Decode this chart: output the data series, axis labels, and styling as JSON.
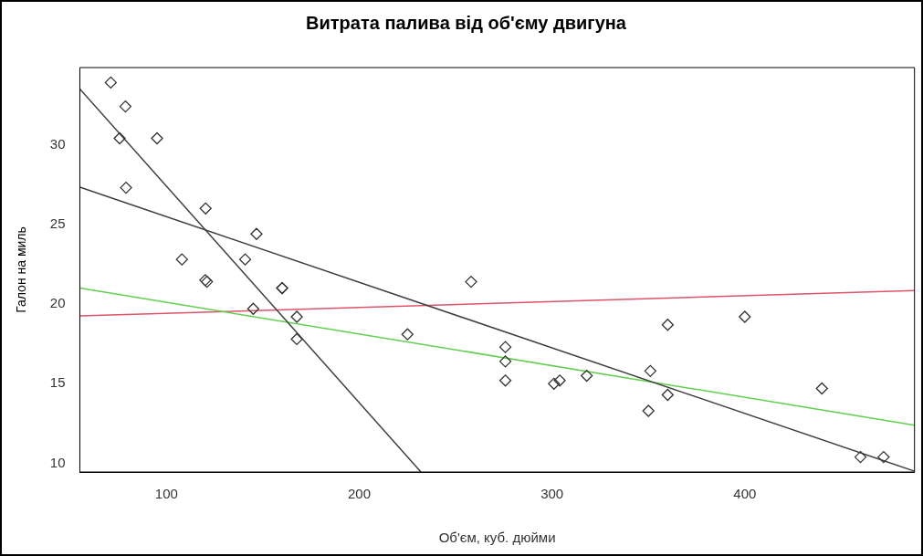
{
  "chart_data": {
    "type": "scatter",
    "title": "Витрата палива від об'єму двигуна",
    "xlabel": "Об'єм, куб. дюйми",
    "ylabel": "Галон на миль",
    "xlim": [
      55.06,
      488.04
    ],
    "ylim": [
      9.46,
      34.84
    ],
    "xticks": [
      100,
      200,
      300,
      400
    ],
    "yticks": [
      10,
      15,
      20,
      25,
      30
    ],
    "grid": false,
    "legend": false,
    "series": [
      {
        "marker": "diamond",
        "color": "#333333",
        "x": [
          160,
          160,
          108,
          258,
          360,
          225,
          360,
          146.7,
          140.8,
          167.6,
          167.6,
          275.8,
          275.8,
          275.8,
          472,
          460,
          440,
          78.7,
          75.7,
          71.1,
          120.1,
          318,
          304,
          350,
          400,
          79,
          120.3,
          95.1,
          351,
          145,
          301,
          121
        ],
        "values": [
          21.0,
          21.0,
          22.8,
          21.4,
          18.7,
          18.1,
          14.3,
          24.4,
          22.8,
          19.2,
          17.8,
          16.4,
          17.3,
          15.2,
          10.4,
          10.4,
          14.7,
          32.4,
          30.4,
          33.9,
          21.5,
          15.5,
          15.2,
          13.3,
          19.2,
          27.3,
          26.0,
          30.4,
          15.8,
          19.7,
          15.0,
          21.4
        ]
      },
      {
        "type": "line",
        "color": "#404040",
        "x": [
          55.06,
          488.04
        ],
        "values": [
          27.33,
          9.51
        ]
      },
      {
        "type": "line",
        "color": "#404040",
        "x": [
          55.06,
          232
        ],
        "values": [
          33.5,
          9.46
        ]
      },
      {
        "type": "line",
        "color": "#61d04f",
        "x": [
          55.06,
          488.04
        ],
        "values": [
          21.0,
          12.4
        ]
      },
      {
        "type": "line",
        "color": "#df536b",
        "x": [
          55.06,
          488.04
        ],
        "values": [
          19.25,
          20.85
        ]
      }
    ]
  }
}
